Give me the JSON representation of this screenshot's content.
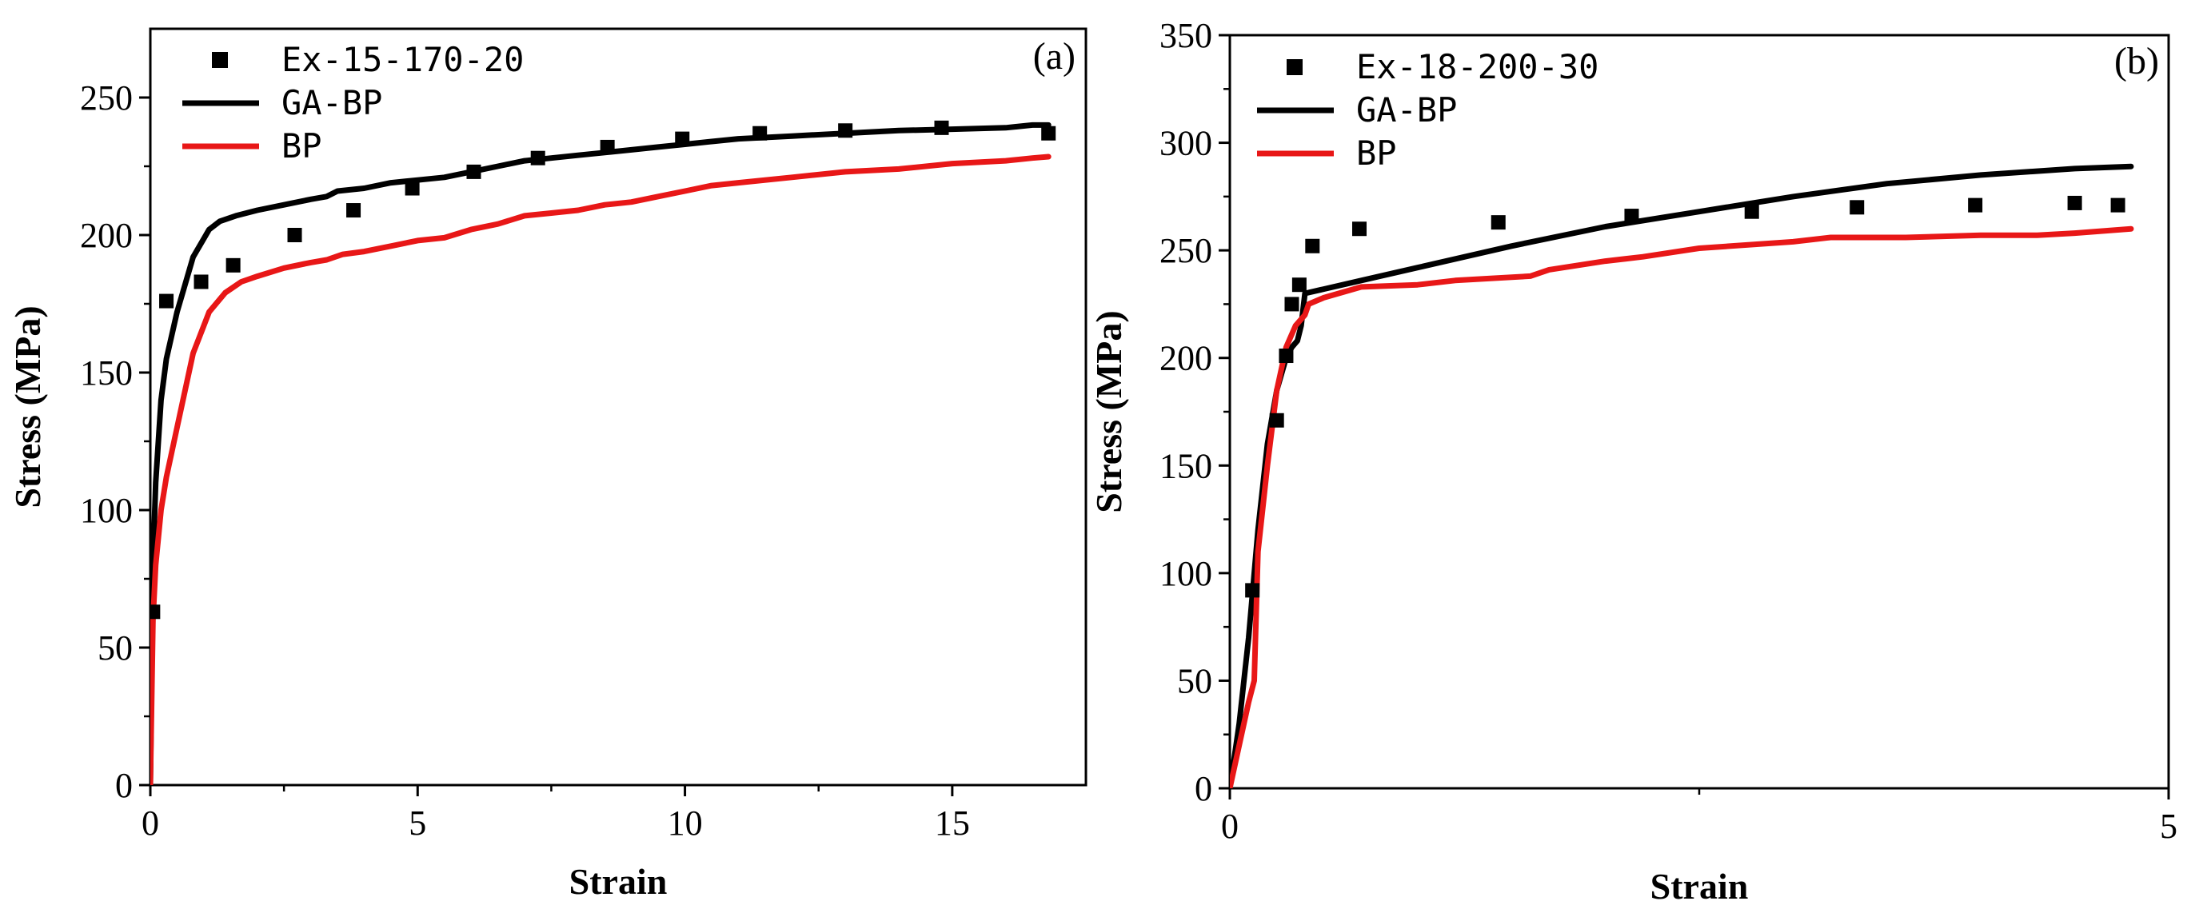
{
  "chart_data": [
    {
      "type": "line",
      "panel_label": "(a)",
      "xlabel": "Strain",
      "ylabel": "Stress (MPa)",
      "xlim": [
        0,
        17.5
      ],
      "ylim": [
        0,
        275
      ],
      "xticks": [
        0,
        5,
        10,
        15
      ],
      "yticks": [
        0,
        50,
        100,
        150,
        200,
        250
      ],
      "legend_position": "top-left",
      "series": [
        {
          "name": "Ex-15-170-20",
          "kind": "scatter",
          "marker": "square",
          "color": "#000000",
          "x": [
            0.05,
            0.3,
            0.95,
            1.55,
            2.7,
            3.8,
            4.9,
            6.05,
            7.25,
            8.55,
            9.95,
            11.4,
            13.0,
            14.8,
            16.8
          ],
          "y": [
            63,
            176,
            183,
            189,
            200,
            209,
            217,
            223,
            228,
            232,
            235,
            237,
            238,
            239,
            237
          ]
        },
        {
          "name": "GA-BP",
          "kind": "line",
          "color": "#000000",
          "x": [
            0.0,
            0.05,
            0.1,
            0.2,
            0.3,
            0.5,
            0.8,
            1.1,
            1.3,
            1.6,
            2.0,
            2.5,
            3.0,
            3.3,
            3.5,
            4.0,
            4.5,
            5.0,
            5.5,
            6.0,
            6.5,
            7.0,
            7.5,
            8.0,
            8.5,
            9.0,
            9.5,
            10.0,
            10.5,
            11.0,
            12.0,
            13.0,
            14.0,
            15.0,
            16.0,
            16.5,
            16.8
          ],
          "y": [
            0,
            80,
            110,
            140,
            155,
            172,
            192,
            202,
            205,
            207,
            209,
            211,
            213,
            214,
            216,
            217,
            219,
            220,
            221,
            223,
            225,
            227,
            228,
            229,
            230,
            231,
            232,
            233,
            234,
            235,
            236,
            237,
            238,
            238.5,
            239,
            240,
            240
          ]
        },
        {
          "name": "BP",
          "kind": "line",
          "color": "#e81717",
          "x": [
            0.0,
            0.05,
            0.1,
            0.2,
            0.3,
            0.5,
            0.8,
            1.1,
            1.4,
            1.7,
            2.0,
            2.5,
            3.0,
            3.3,
            3.6,
            4.0,
            4.5,
            5.0,
            5.5,
            6.0,
            6.5,
            7.0,
            7.5,
            8.0,
            8.5,
            9.0,
            9.5,
            10.0,
            10.5,
            11.0,
            12.0,
            13.0,
            14.0,
            15.0,
            16.0,
            16.5,
            16.8
          ],
          "y": [
            0,
            60,
            80,
            100,
            112,
            130,
            157,
            172,
            179,
            183,
            185,
            188,
            190,
            191,
            193,
            194,
            196,
            198,
            199,
            202,
            204,
            207,
            208,
            209,
            211,
            212,
            214,
            216,
            218,
            219,
            221,
            223,
            224,
            226,
            227,
            228,
            228.5
          ]
        }
      ]
    },
    {
      "type": "line",
      "panel_label": "(b)",
      "xlabel": "Strain",
      "ylabel": "Stress (MPa)",
      "xlim": [
        0,
        5
      ],
      "ylim": [
        0,
        350
      ],
      "xticks": [
        0,
        5
      ],
      "yticks": [
        0,
        50,
        100,
        150,
        200,
        250,
        300,
        350
      ],
      "legend_position": "top-left",
      "series": [
        {
          "name": "Ex-18-200-30",
          "kind": "scatter",
          "marker": "square",
          "color": "#000000",
          "x": [
            0.12,
            0.25,
            0.3,
            0.33,
            0.37,
            0.44,
            0.69,
            1.43,
            2.14,
            2.78,
            3.34,
            3.97,
            4.5,
            4.73
          ],
          "y": [
            92,
            171,
            201,
            225,
            234,
            252,
            260,
            263,
            266,
            268,
            270,
            271,
            272,
            271
          ]
        },
        {
          "name": "GA-BP",
          "kind": "line",
          "color": "#000000",
          "x": [
            0.0,
            0.05,
            0.1,
            0.15,
            0.2,
            0.25,
            0.3,
            0.33,
            0.36,
            0.38,
            0.4,
            0.5,
            0.7,
            1.0,
            1.5,
            2.0,
            2.5,
            3.0,
            3.5,
            4.0,
            4.5,
            4.8
          ],
          "y": [
            0,
            30,
            70,
            120,
            160,
            185,
            200,
            205,
            208,
            215,
            230,
            232,
            236,
            242,
            252,
            261,
            268,
            275,
            281,
            285,
            288,
            289
          ]
        },
        {
          "name": "BP",
          "kind": "line",
          "color": "#e81717",
          "x": [
            0.0,
            0.05,
            0.1,
            0.13,
            0.15,
            0.2,
            0.25,
            0.3,
            0.35,
            0.4,
            0.42,
            0.5,
            0.7,
            1.0,
            1.2,
            1.6,
            1.7,
            2.0,
            2.2,
            2.5,
            3.0,
            3.2,
            3.5,
            3.6,
            4.0,
            4.3,
            4.5,
            4.8
          ],
          "y": [
            0,
            20,
            40,
            50,
            110,
            150,
            185,
            205,
            215,
            220,
            225,
            228,
            233,
            234,
            236,
            238,
            241,
            245,
            247,
            251,
            254,
            256,
            256,
            256,
            257,
            257,
            258,
            260
          ]
        }
      ]
    }
  ]
}
